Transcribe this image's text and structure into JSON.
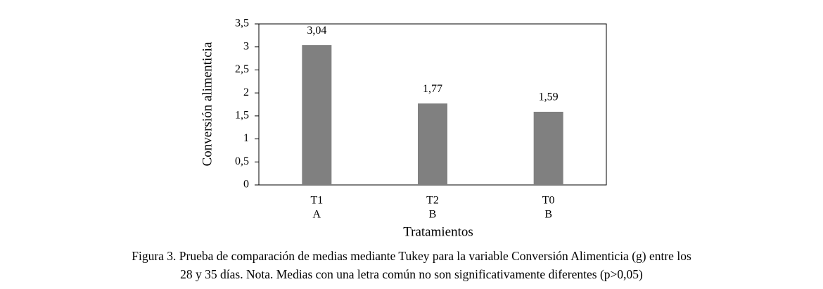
{
  "chart_data": {
    "type": "bar",
    "categories": [
      "T1",
      "T2",
      "T0"
    ],
    "groups": [
      "A",
      "B",
      "B"
    ],
    "values": [
      3.04,
      1.77,
      1.59
    ],
    "value_labels": [
      "3,04",
      "1,77",
      "1,59"
    ],
    "color": "#808080",
    "ylabel": "Conversión alimenticia",
    "xlabel": "Tratamientos",
    "ylim": [
      0,
      3.5
    ],
    "yticks": [
      0,
      {
        "value": 0.5,
        "label": "0,5"
      },
      1,
      {
        "value": 1.5,
        "label": "1,5"
      },
      2,
      {
        "value": 2.5,
        "label": "2,5"
      },
      3,
      {
        "value": 3.5,
        "label": "3,5"
      }
    ],
    "caption": [
      "Figura  3. Prueba de comparación de medias mediante Tukey para la variable Conversión Alimenticia (g)  entre los",
      "28 y 35 días. Nota. Medias con una letra común no son significativamente diferentes (p>0,05)"
    ]
  }
}
